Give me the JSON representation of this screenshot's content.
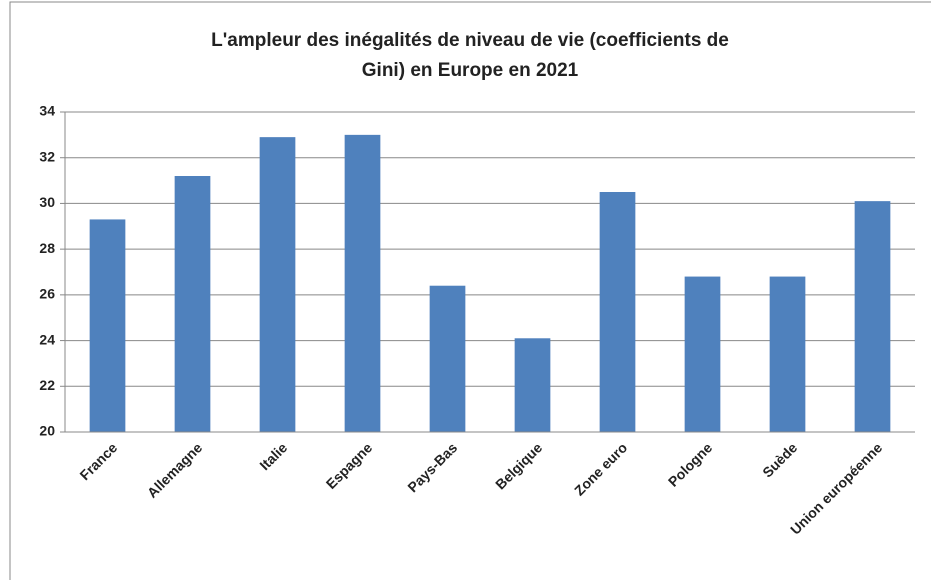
{
  "chart_data": {
    "type": "bar",
    "title": "L'ampleur des inégalités de niveau de vie (coefficients de Gini) en Europe en 2021",
    "categories": [
      "France",
      "Allemagne",
      "Italie",
      "Espagne",
      "Pays-Bas",
      "Belgique",
      "Zone euro",
      "Pologne",
      "Suède",
      "Union européenne"
    ],
    "values": [
      29.3,
      31.2,
      32.9,
      33.0,
      26.4,
      24.1,
      30.5,
      26.8,
      26.8,
      30.1
    ],
    "color": "#4f81bd",
    "ylim": [
      20,
      34
    ],
    "yticks": [
      20,
      22,
      24,
      26,
      28,
      30,
      32,
      34
    ],
    "grid": true
  }
}
